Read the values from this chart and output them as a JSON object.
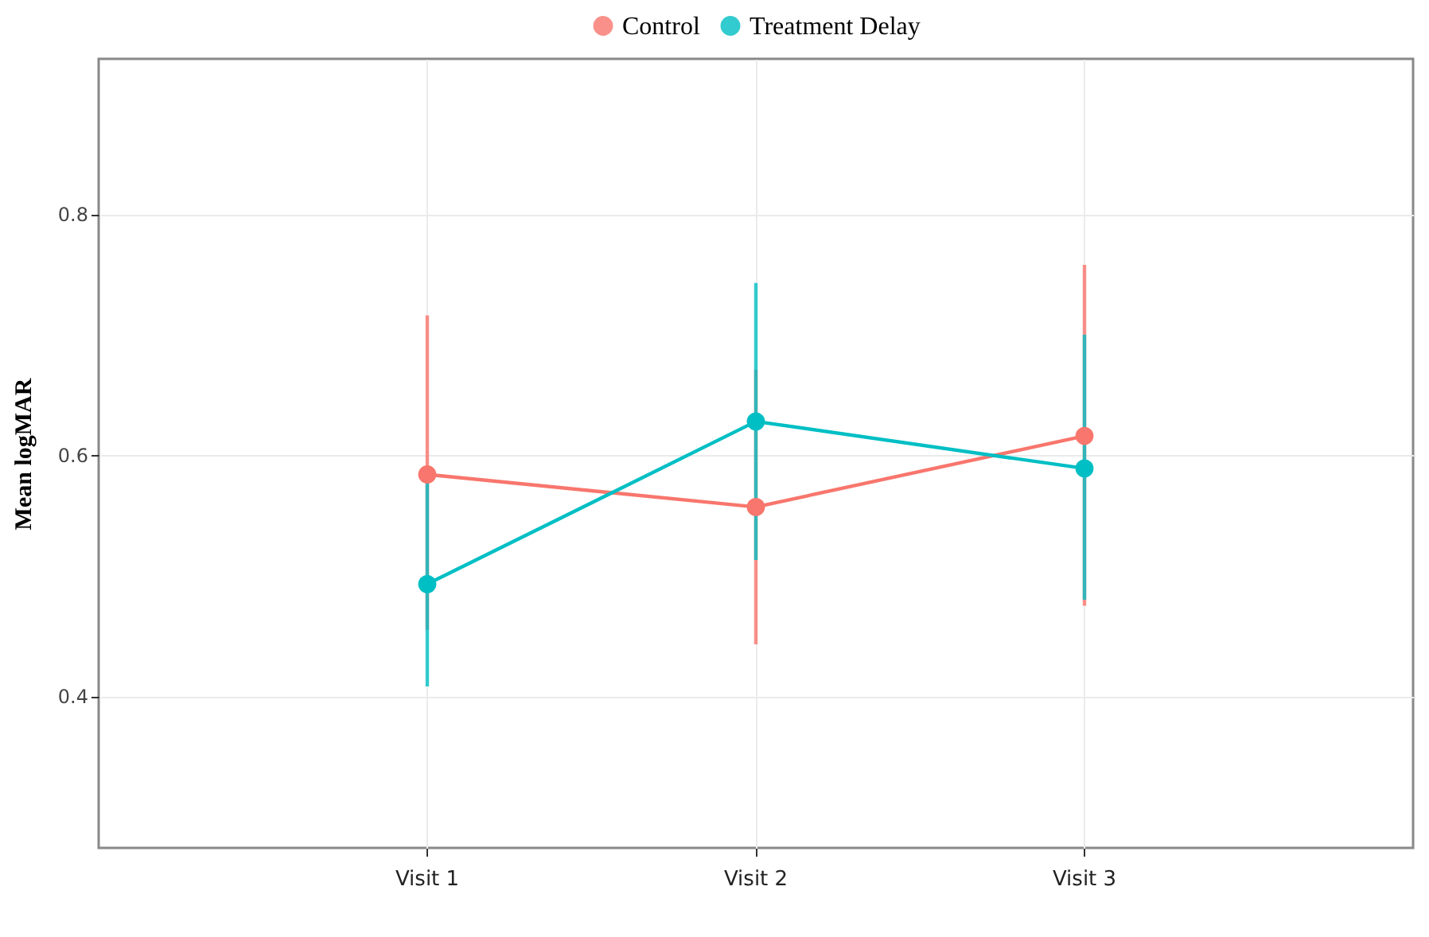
{
  "chart_data": {
    "type": "line",
    "ylabel": "Mean logMAR",
    "categories": [
      "Visit 1",
      "Visit 2",
      "Visit 3"
    ],
    "series": [
      {
        "name": "Control",
        "color": "#f8766d",
        "values": [
          0.584,
          0.557,
          0.616
        ],
        "errors": [
          [
            0.455,
            0.716
          ],
          [
            0.443,
            0.671
          ],
          [
            0.475,
            0.758
          ]
        ]
      },
      {
        "name": "Treatment Delay",
        "color": "#00bfc4",
        "values": [
          0.493,
          0.628,
          0.589
        ],
        "errors": [
          [
            0.408,
            0.578
          ],
          [
            0.513,
            0.743
          ],
          [
            0.48,
            0.7
          ]
        ]
      }
    ],
    "ylim": [
      0.274,
      0.929
    ],
    "yticks": [
      0.4,
      0.6,
      0.8
    ],
    "grid": true,
    "legend": "top",
    "marker": "circle",
    "line_style": "solid"
  }
}
